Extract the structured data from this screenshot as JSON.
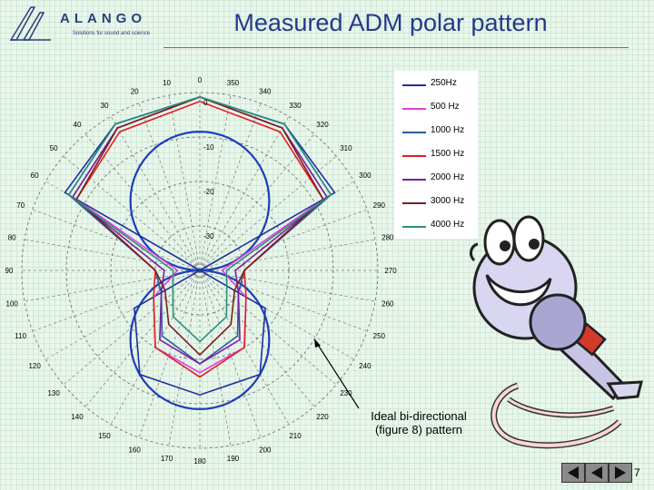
{
  "slide": {
    "title": "Measured ADM polar pattern",
    "page_number": "7"
  },
  "logo": {
    "word": "ALANGO",
    "tagline": "Solutions for sound and science"
  },
  "annotation": {
    "line1": "Ideal bi-directional",
    "line2": "(figure 8) pattern"
  },
  "chart_data": {
    "type": "polar",
    "title": "Measured ADM polar pattern",
    "angle_unit": "degrees",
    "angle_labels_left": [
      "0",
      "10",
      "20",
      "30",
      "40",
      "50",
      "60",
      "70",
      "80",
      "90",
      "100",
      "110",
      "120",
      "130",
      "140",
      "150",
      "160",
      "170",
      "180"
    ],
    "angle_labels_right": [
      "190",
      "200",
      "210",
      "220",
      "230",
      "240",
      "250",
      "260",
      "270",
      "280",
      "290",
      "300",
      "310",
      "320",
      "330",
      "340",
      "350"
    ],
    "radial_unit": "dB",
    "radial_labels": [
      "0",
      "-10",
      "-20",
      "-30"
    ],
    "radial_range": [
      -40,
      0
    ],
    "grid": true,
    "legend_position": "top-right",
    "series": [
      {
        "name": "250Hz",
        "color": "#1f2f9f",
        "angles": [
          0,
          30,
          60,
          90,
          120,
          150,
          180,
          210,
          240,
          270,
          300,
          330
        ],
        "values": [
          -1,
          -2,
          -5,
          -40,
          -23,
          -13,
          -12,
          -13,
          -23,
          -40,
          -5,
          -2
        ]
      },
      {
        "name": "500 Hz",
        "color": "#e040e0",
        "angles": [
          0,
          30,
          60,
          90,
          120,
          150,
          180,
          210,
          240,
          270,
          300,
          330
        ],
        "values": [
          -1,
          -3,
          -7,
          -35,
          -28,
          -20,
          -17,
          -20,
          -28,
          -35,
          -7,
          -3
        ]
      },
      {
        "name": "1000 Hz",
        "color": "#2a5a9e",
        "angles": [
          0,
          30,
          60,
          90,
          120,
          150,
          180,
          210,
          240,
          270,
          300,
          330
        ],
        "values": [
          -1,
          -2,
          -6,
          -30,
          -30,
          -23,
          -19,
          -23,
          -30,
          -30,
          -6,
          -2
        ]
      },
      {
        "name": "1500 Hz",
        "color": "#e02020",
        "angles": [
          0,
          30,
          60,
          90,
          120,
          150,
          180,
          210,
          240,
          270,
          300,
          330
        ],
        "values": [
          -2,
          -4,
          -8,
          -30,
          -28,
          -20,
          -16,
          -20,
          -28,
          -30,
          -8,
          -4
        ]
      },
      {
        "name": "2000 Hz",
        "color": "#7a1fa0",
        "angles": [
          0,
          30,
          60,
          90,
          120,
          150,
          180,
          210,
          240,
          270,
          300,
          330
        ],
        "values": [
          -1,
          -3,
          -7,
          -32,
          -30,
          -22,
          -19,
          -22,
          -30,
          -32,
          -7,
          -3
        ]
      },
      {
        "name": "3000 Hz",
        "color": "#7a1f1f",
        "angles": [
          0,
          30,
          60,
          90,
          120,
          150,
          180,
          210,
          240,
          270,
          300,
          330
        ],
        "values": [
          -1,
          -3,
          -8,
          -30,
          -31,
          -26,
          -21,
          -26,
          -31,
          -30,
          -8,
          -3
        ]
      },
      {
        "name": "4000 Hz",
        "color": "#2a8f7a",
        "angles": [
          0,
          30,
          60,
          90,
          120,
          150,
          180,
          210,
          240,
          270,
          300,
          330
        ],
        "values": [
          -1,
          -2,
          -6,
          -34,
          -33,
          -28,
          -24,
          -28,
          -33,
          -34,
          -6,
          -2
        ]
      }
    ]
  }
}
